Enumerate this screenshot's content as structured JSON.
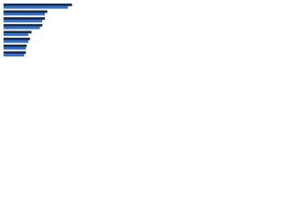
{
  "chart_data": {
    "type": "hbar",
    "categories": [
      null,
      null,
      null,
      null,
      null,
      null,
      null,
      null
    ],
    "series": [
      {
        "color": "#1a2a4a",
        "values": [
          83,
          53,
          50,
          47,
          34,
          32,
          28,
          27
        ]
      },
      {
        "color": "#2f6fd0",
        "values": [
          78,
          50,
          47,
          44,
          30,
          30,
          27,
          25
        ]
      }
    ],
    "xlim": [
      0,
      100
    ]
  }
}
